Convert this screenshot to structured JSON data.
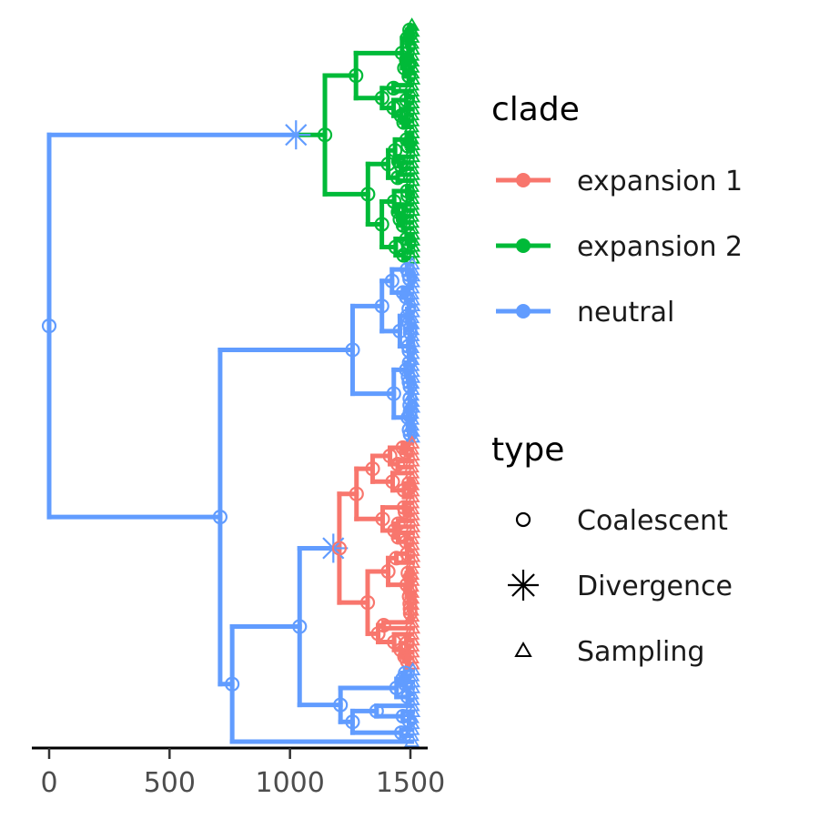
{
  "chart_data": {
    "type": "phylogenetic-tree",
    "orientation": "horizontal",
    "xlabel": "",
    "ylabel": "",
    "xlim": [
      -70,
      1575
    ],
    "x_ticks": [
      0,
      500,
      1000,
      1500
    ],
    "x_tick_labels": [
      "0",
      "500",
      "1000",
      "1500"
    ],
    "colors": {
      "expansion 1": "#F8766D",
      "expansion 2": "#00BA38",
      "neutral": "#619CFF"
    },
    "legend": {
      "placement": "right",
      "clade": {
        "title": "clade",
        "items": [
          {
            "label": "expansion 1",
            "color": "#F8766D"
          },
          {
            "label": "expansion 2",
            "color": "#00BA38"
          },
          {
            "label": "neutral",
            "color": "#619CFF"
          }
        ]
      },
      "type": {
        "title": "type",
        "items": [
          {
            "label": "Coalescent",
            "shape": "circle-open"
          },
          {
            "label": "Divergence",
            "shape": "asterisk"
          },
          {
            "label": "Sampling",
            "shape": "triangle-open"
          }
        ]
      }
    },
    "tree": {
      "root_time": 0,
      "root_type": "Coalescent",
      "root_clade": "neutral",
      "sampling_time": 1510,
      "neutral_leaf_count": 48,
      "expansion_1_leaf_count": 38,
      "expansion_2_leaf_count": 40,
      "divergence_times": {
        "expansion 2": 1025,
        "expansion 1": 1180
      },
      "key_coalescent_times": [
        0,
        710,
        760,
        1040,
        1260,
        1145,
        1205
      ]
    }
  }
}
